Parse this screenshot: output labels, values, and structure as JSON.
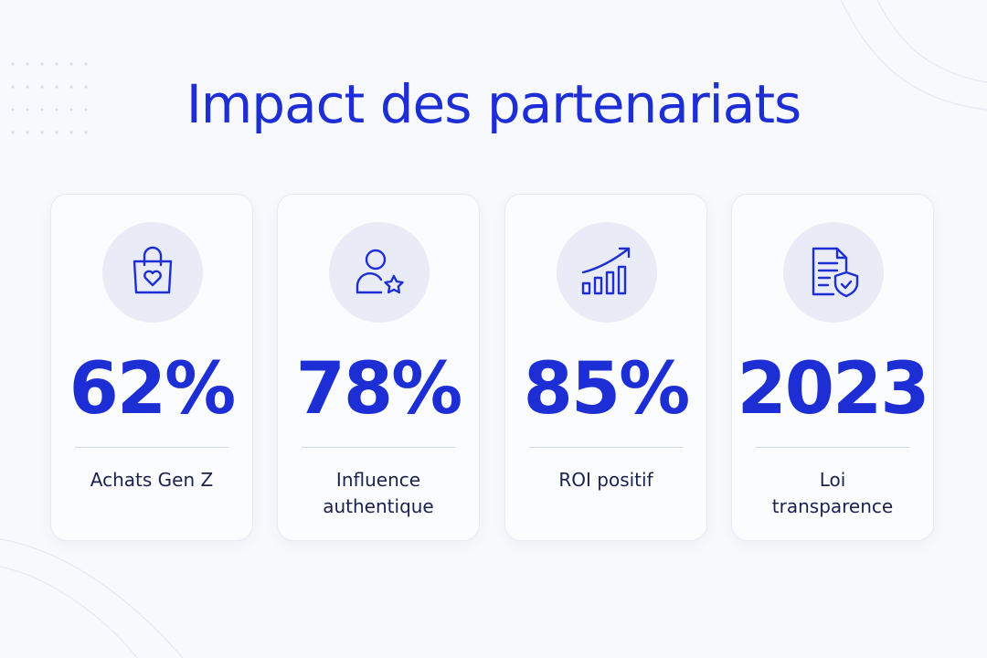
{
  "header": {
    "title": "Impact des partenariats"
  },
  "cards": [
    {
      "stat": "62%",
      "label": [
        "Achats Gen Z"
      ]
    },
    {
      "stat": "78%",
      "label": [
        "Influence",
        "authentique"
      ]
    },
    {
      "stat": "85%",
      "label": [
        "ROI positif"
      ]
    },
    {
      "stat": "2023",
      "label": [
        "Loi",
        "transparence"
      ]
    }
  ]
}
